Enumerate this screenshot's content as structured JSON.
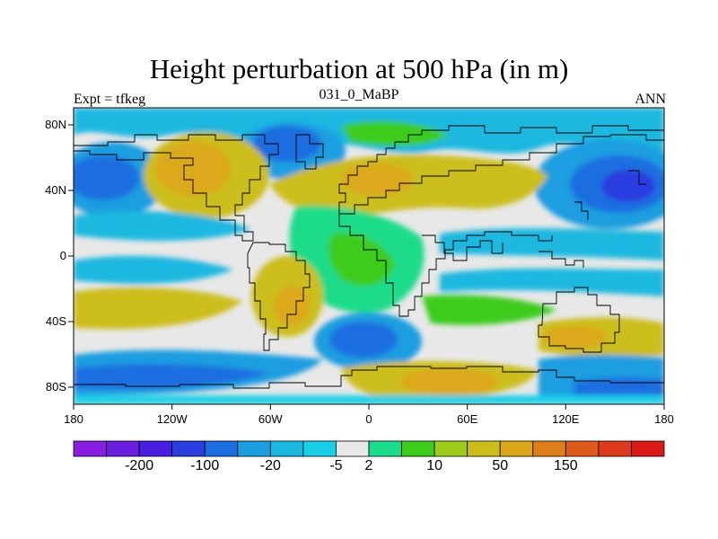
{
  "title": "Height perturbation at 500 hPa (in m)",
  "left_label": "Expt = tfkeg",
  "center_label": "031_0_MaBP",
  "right_label": "ANN",
  "axes": {
    "lon_ticks": [
      "180",
      "120W",
      "60W",
      "0",
      "60E",
      "120E",
      "180"
    ],
    "lat_ticks": [
      "80N",
      "40N",
      "0",
      "40S",
      "80S"
    ]
  },
  "colorbar": {
    "labels": [
      "-200",
      "-100",
      "-20",
      "-5",
      "2",
      "10",
      "50",
      "150"
    ],
    "colors": [
      "#8a1ee0",
      "#6a1ee0",
      "#4a1ee0",
      "#2a3ee0",
      "#1a6ee0",
      "#1a9ee0",
      "#1ab8e0",
      "#1ad0e8",
      "#e8e8e8",
      "#1adc8a",
      "#3ccc1a",
      "#9ccc1a",
      "#ccbe1a",
      "#dca81a",
      "#dc7e1a",
      "#dc5a1a",
      "#dc3a1a",
      "#dc1a1a"
    ]
  },
  "chart_data": {
    "type": "heatmap",
    "title": "Height perturbation at 500 hPa (in m)",
    "field": "500 hPa height perturbation",
    "units": "m",
    "experiment": "tfkeg",
    "period": "031_0_MaBP",
    "season": "ANN",
    "lon_range": [
      -180,
      180
    ],
    "lat_range": [
      -90,
      90
    ],
    "colorbar_levels": [
      -200,
      -100,
      -20,
      -5,
      2,
      10,
      50,
      150
    ]
  }
}
